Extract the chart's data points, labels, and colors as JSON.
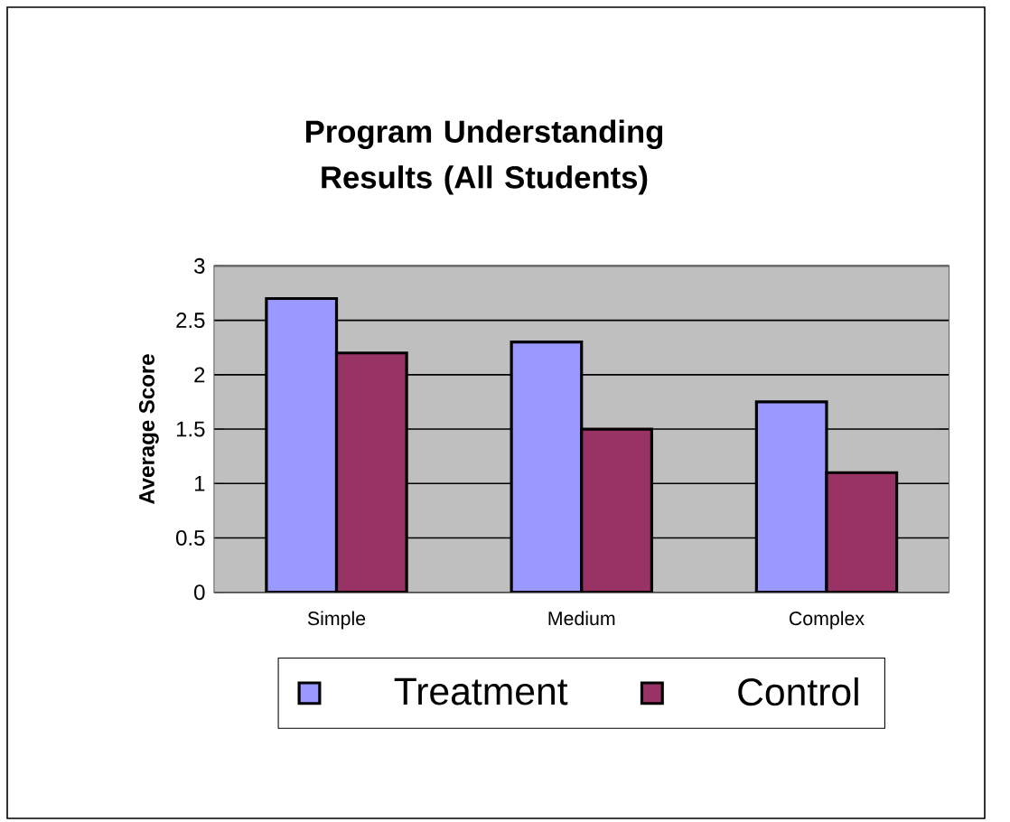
{
  "chart_data": {
    "type": "bar",
    "title": "Program Understanding Results (All Students)",
    "ylabel": "Average Score",
    "categories": [
      "Simple",
      "Medium",
      "Complex"
    ],
    "series": [
      {
        "name": "Treatment",
        "color": "#9999ff",
        "values": [
          2.7,
          2.3,
          1.75
        ]
      },
      {
        "name": "Control",
        "color": "#993366",
        "values": [
          2.2,
          1.5,
          1.1
        ]
      }
    ],
    "ylim": [
      0,
      3
    ],
    "yticks": [
      0,
      0.5,
      1,
      1.5,
      2,
      2.5,
      3
    ],
    "grid": "y",
    "legend": "bottom"
  }
}
